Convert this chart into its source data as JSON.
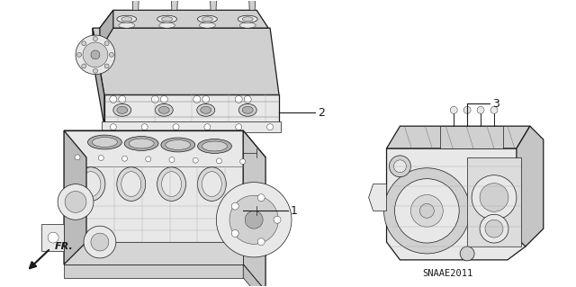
{
  "background_color": "#ffffff",
  "figsize": [
    6.4,
    3.19
  ],
  "dpi": 100,
  "line_color": "#1a1a1a",
  "light_gray": "#aaaaaa",
  "mid_gray": "#666666",
  "dark_gray": "#333333",
  "fill_light": "#e8e8e8",
  "fill_mid": "#d0d0d0",
  "fill_dark": "#b0b0b0",
  "code_text": "SNAAE2011",
  "lw_main": 0.9,
  "lw_detail": 0.5,
  "lw_thin": 0.3
}
